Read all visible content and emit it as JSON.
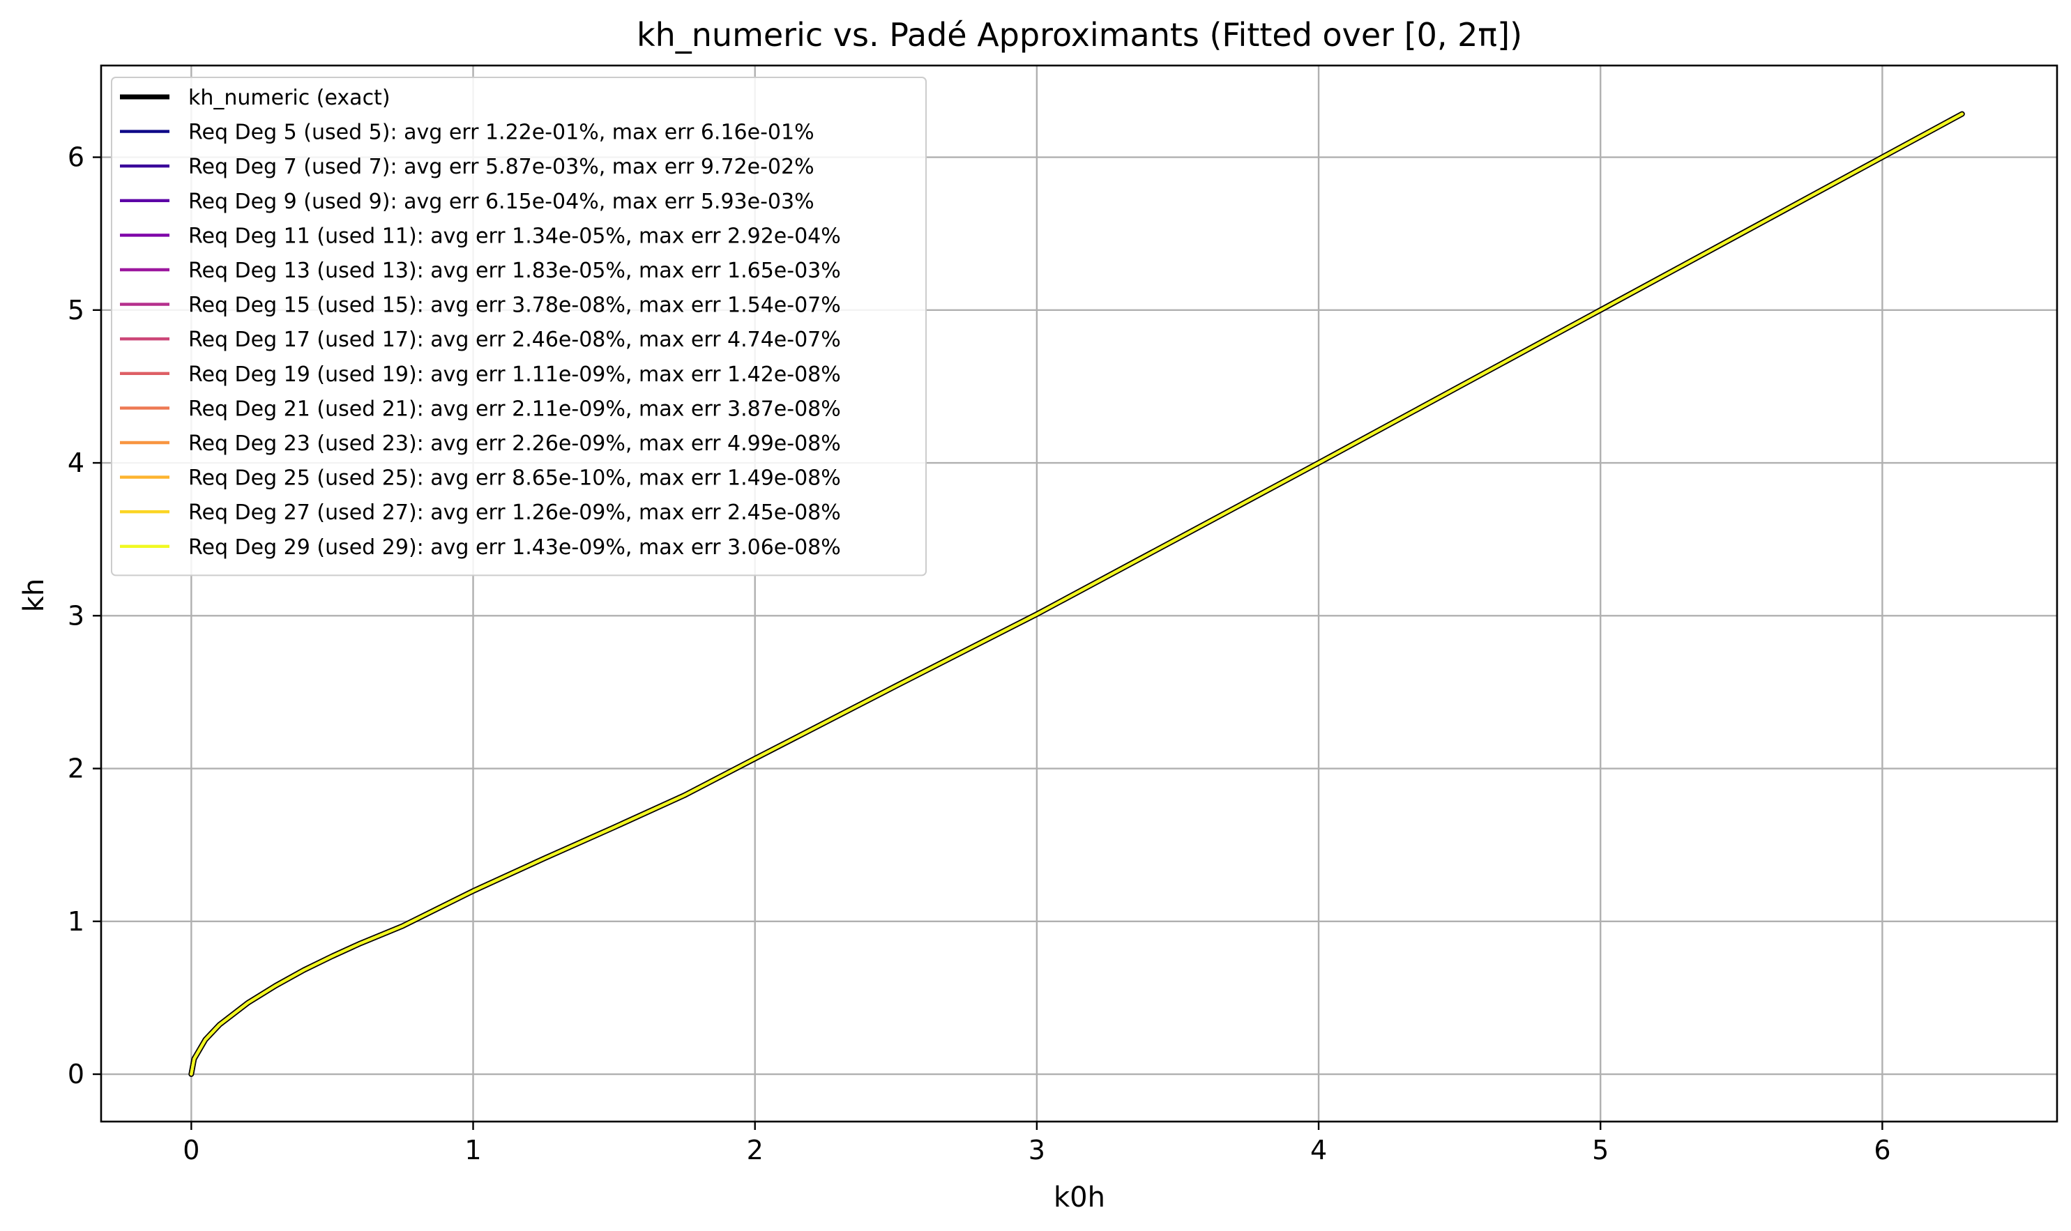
{
  "chart_data": {
    "type": "line",
    "title": "kh_numeric vs. Padé Approximants (Fitted over [0, 2π])",
    "xlabel": "k0h",
    "ylabel": "kh",
    "xlim": [
      -0.32,
      6.62
    ],
    "ylim": [
      -0.31,
      6.6
    ],
    "xticks": [
      "0",
      "1",
      "2",
      "3",
      "4",
      "5",
      "6"
    ],
    "yticks": [
      "0",
      "1",
      "2",
      "3",
      "4",
      "5",
      "6"
    ],
    "grid": true,
    "legend_position": "upper-left",
    "x": [
      0,
      0.01,
      0.05,
      0.1,
      0.2,
      0.3,
      0.4,
      0.5,
      0.6,
      0.75,
      1.0,
      1.25,
      1.5,
      1.75,
      2.0,
      2.5,
      3.0,
      3.5,
      4.0,
      4.5,
      5.0,
      5.5,
      6.0,
      6.283
    ],
    "series": [
      {
        "name": "kh_numeric (exact)",
        "color": "#000000",
        "values": [
          0,
          0.1,
          0.226,
          0.324,
          0.466,
          0.58,
          0.682,
          0.772,
          0.856,
          0.97,
          1.199,
          1.41,
          1.615,
          1.825,
          2.065,
          2.54,
          3.01,
          3.505,
          4.0,
          4.5,
          5.0,
          5.5,
          6.0,
          6.283
        ]
      },
      {
        "name": "Req Deg 5 (used 5): avg err 1.22e-01%, max err 6.16e-01%",
        "color": "#0d0887"
      },
      {
        "name": "Req Deg 7 (used 7): avg err 5.87e-03%, max err 9.72e-02%",
        "color": "#3a049a"
      },
      {
        "name": "Req Deg 9 (used 9): avg err 6.15e-04%, max err 5.93e-03%",
        "color": "#5c01a6"
      },
      {
        "name": "Req Deg 11 (used 11): avg err 1.34e-05%, max err 2.92e-04%",
        "color": "#7e03a8"
      },
      {
        "name": "Req Deg 13 (used 13): avg err 1.83e-05%, max err 1.65e-03%",
        "color": "#9c179e"
      },
      {
        "name": "Req Deg 15 (used 15): avg err 3.78e-08%, max err 1.54e-07%",
        "color": "#b52f8c"
      },
      {
        "name": "Req Deg 17 (used 17): avg err 2.46e-08%, max err 4.74e-07%",
        "color": "#cc4778"
      },
      {
        "name": "Req Deg 19 (used 19): avg err 1.11e-09%, max err 1.42e-08%",
        "color": "#de5f65"
      },
      {
        "name": "Req Deg 21 (used 21): avg err 2.11e-09%, max err 3.87e-08%",
        "color": "#ed7953"
      },
      {
        "name": "Req Deg 23 (used 23): avg err 2.26e-09%, max err 4.99e-08%",
        "color": "#f89540"
      },
      {
        "name": "Req Deg 25 (used 25): avg err 8.65e-10%, max err 1.49e-08%",
        "color": "#fdb42f"
      },
      {
        "name": "Req Deg 27 (used 27): avg err 1.26e-09%, max err 2.45e-08%",
        "color": "#fbd524"
      },
      {
        "name": "Req Deg 29 (used 29): avg err 1.43e-09%, max err 3.06e-08%",
        "color": "#f0f921"
      }
    ]
  }
}
